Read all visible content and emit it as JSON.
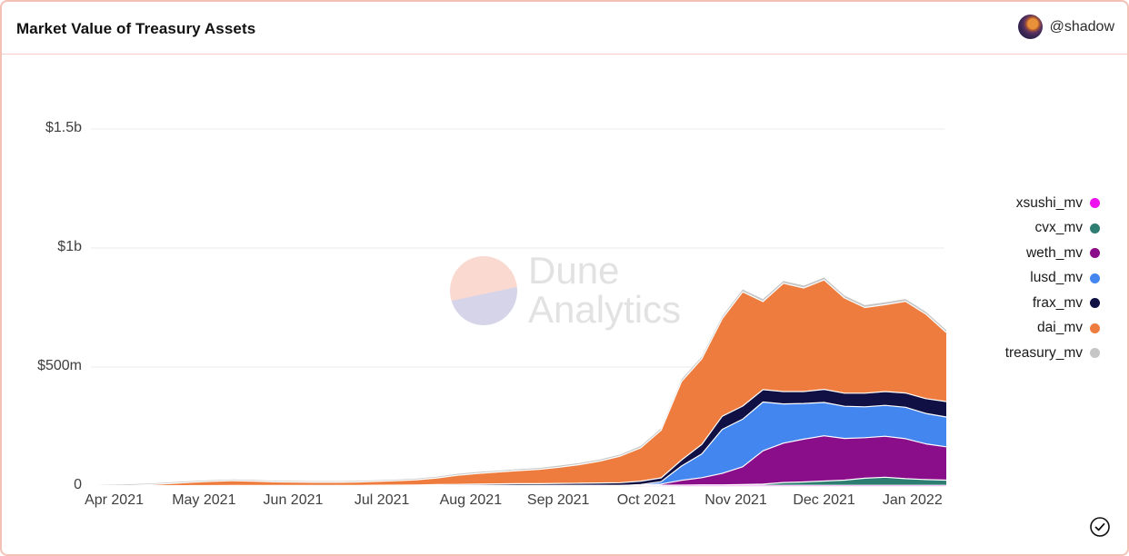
{
  "header": {
    "title": "Market Value of Treasury Assets",
    "author_handle": "@shadow"
  },
  "watermark": {
    "line1": "Dune",
    "line2": "Analytics"
  },
  "colors": {
    "card_border": "#f3c1b6",
    "gridline": "#ebebeb",
    "axis_text": "#3f3f3f",
    "boundary_stroke": "#ffffff"
  },
  "icons": {
    "check_circle": "check-circle-icon",
    "avatar": "shadow-avatar"
  },
  "chart_data": {
    "type": "area",
    "stacked": true,
    "title": "Market Value of Treasury Assets",
    "unit": "USD (millions)",
    "grid": true,
    "legend_position": "right",
    "x_range": [
      "Mar 2021",
      "Jan 2022"
    ],
    "ylim": [
      0,
      1660
    ],
    "y_axis": {
      "ticks": [
        {
          "label": "$1.5b",
          "value": 1500
        },
        {
          "label": "$1b",
          "value": 1000
        },
        {
          "label": "$500m",
          "value": 500
        },
        {
          "label": "0",
          "value": 0
        }
      ]
    },
    "x_axis": {
      "ticks": [
        {
          "label": "Apr 2021",
          "i": 1.14
        },
        {
          "label": "May 2021",
          "i": 5.55
        },
        {
          "label": "Jun 2021",
          "i": 9.93
        },
        {
          "label": "Jul 2021",
          "i": 14.29
        },
        {
          "label": "Aug 2021",
          "i": 18.65
        },
        {
          "label": "Sep 2021",
          "i": 22.95
        },
        {
          "label": "Oct 2021",
          "i": 27.28
        },
        {
          "label": "Nov 2021",
          "i": 31.67
        },
        {
          "label": "Dec 2021",
          "i": 36.0
        },
        {
          "label": "Jan 2022",
          "i": 40.34
        }
      ]
    },
    "points_cadence": "weekly (43 points, late Mar 2021 to mid Jan 2022), values in USD millions, stacked bottom-to-top",
    "series": [
      {
        "name": "xsushi_mv",
        "color": "#ee13ee",
        "values": [
          0.5,
          0.5,
          0.5,
          1,
          1,
          1,
          1,
          1,
          1,
          1,
          1,
          1,
          1,
          1,
          1.5,
          1.5,
          1.5,
          2,
          2,
          2,
          2,
          2,
          2,
          2,
          2,
          2,
          2,
          2.5,
          2.5,
          3,
          3,
          3,
          3,
          3,
          3,
          3,
          3,
          3,
          3,
          3,
          3,
          3,
          3
        ]
      },
      {
        "name": "cvx_mv",
        "color": "#2e7d72",
        "values": [
          0,
          0,
          0,
          0,
          0,
          0,
          0,
          0,
          0,
          0,
          0,
          0,
          0,
          0,
          0,
          0,
          0,
          0,
          0,
          0,
          0,
          0,
          0,
          0,
          0,
          0,
          0,
          0,
          1,
          1,
          2,
          2,
          3,
          5,
          12,
          14,
          18,
          22,
          30,
          34,
          28,
          24,
          22
        ]
      },
      {
        "name": "weth_mv",
        "color": "#8a0e8a",
        "values": [
          0,
          0,
          0,
          0,
          0,
          0,
          0,
          0,
          0,
          0,
          0,
          0,
          0,
          0,
          0,
          0,
          0,
          0,
          0,
          0,
          0,
          0,
          0,
          0,
          0,
          0,
          0,
          2,
          5,
          20,
          30,
          48,
          75,
          140,
          165,
          180,
          190,
          175,
          170,
          172,
          168,
          150,
          140
        ]
      },
      {
        "name": "lusd_mv",
        "color": "#4486f0",
        "values": [
          0,
          0,
          0,
          0,
          0,
          0,
          0,
          0,
          0,
          0,
          0,
          0,
          0,
          0,
          0,
          0,
          0,
          0,
          0,
          0,
          0,
          0,
          0,
          0,
          0,
          0,
          0,
          2,
          10,
          60,
          100,
          185,
          200,
          205,
          165,
          150,
          140,
          135,
          130,
          130,
          132,
          128,
          125
        ]
      },
      {
        "name": "frax_mv",
        "color": "#101044",
        "values": [
          0,
          0,
          0,
          0,
          0,
          1,
          1,
          1.5,
          1.5,
          1.5,
          1.5,
          1.5,
          1.5,
          1.5,
          2,
          2.5,
          3,
          4,
          5,
          6,
          7,
          8,
          8,
          9,
          10,
          11,
          12,
          14,
          16,
          25,
          40,
          55,
          55,
          52,
          52,
          50,
          55,
          55,
          57,
          58,
          60,
          62,
          65
        ]
      },
      {
        "name": "dai_mv",
        "color": "#ed7c3e",
        "values": [
          0,
          1,
          2,
          5,
          10,
          14,
          18,
          20,
          18,
          15,
          14,
          13,
          13,
          14,
          16,
          18,
          22,
          28,
          38,
          45,
          50,
          55,
          60,
          68,
          78,
          92,
          112,
          140,
          200,
          330,
          360,
          410,
          480,
          370,
          455,
          435,
          460,
          400,
          360,
          365,
          385,
          355,
          290
        ]
      },
      {
        "name": "treasury_mv",
        "color": "#c6c6c6",
        "values": [
          3,
          4,
          5,
          5,
          5,
          5,
          5,
          5,
          5,
          5,
          5,
          5,
          5,
          5,
          5,
          5,
          5,
          5,
          6,
          6,
          6,
          6,
          6,
          7,
          7,
          7,
          7,
          8,
          8,
          9,
          9,
          10,
          10,
          10,
          10,
          10,
          10,
          10,
          10,
          10,
          10,
          10,
          10
        ]
      }
    ]
  }
}
